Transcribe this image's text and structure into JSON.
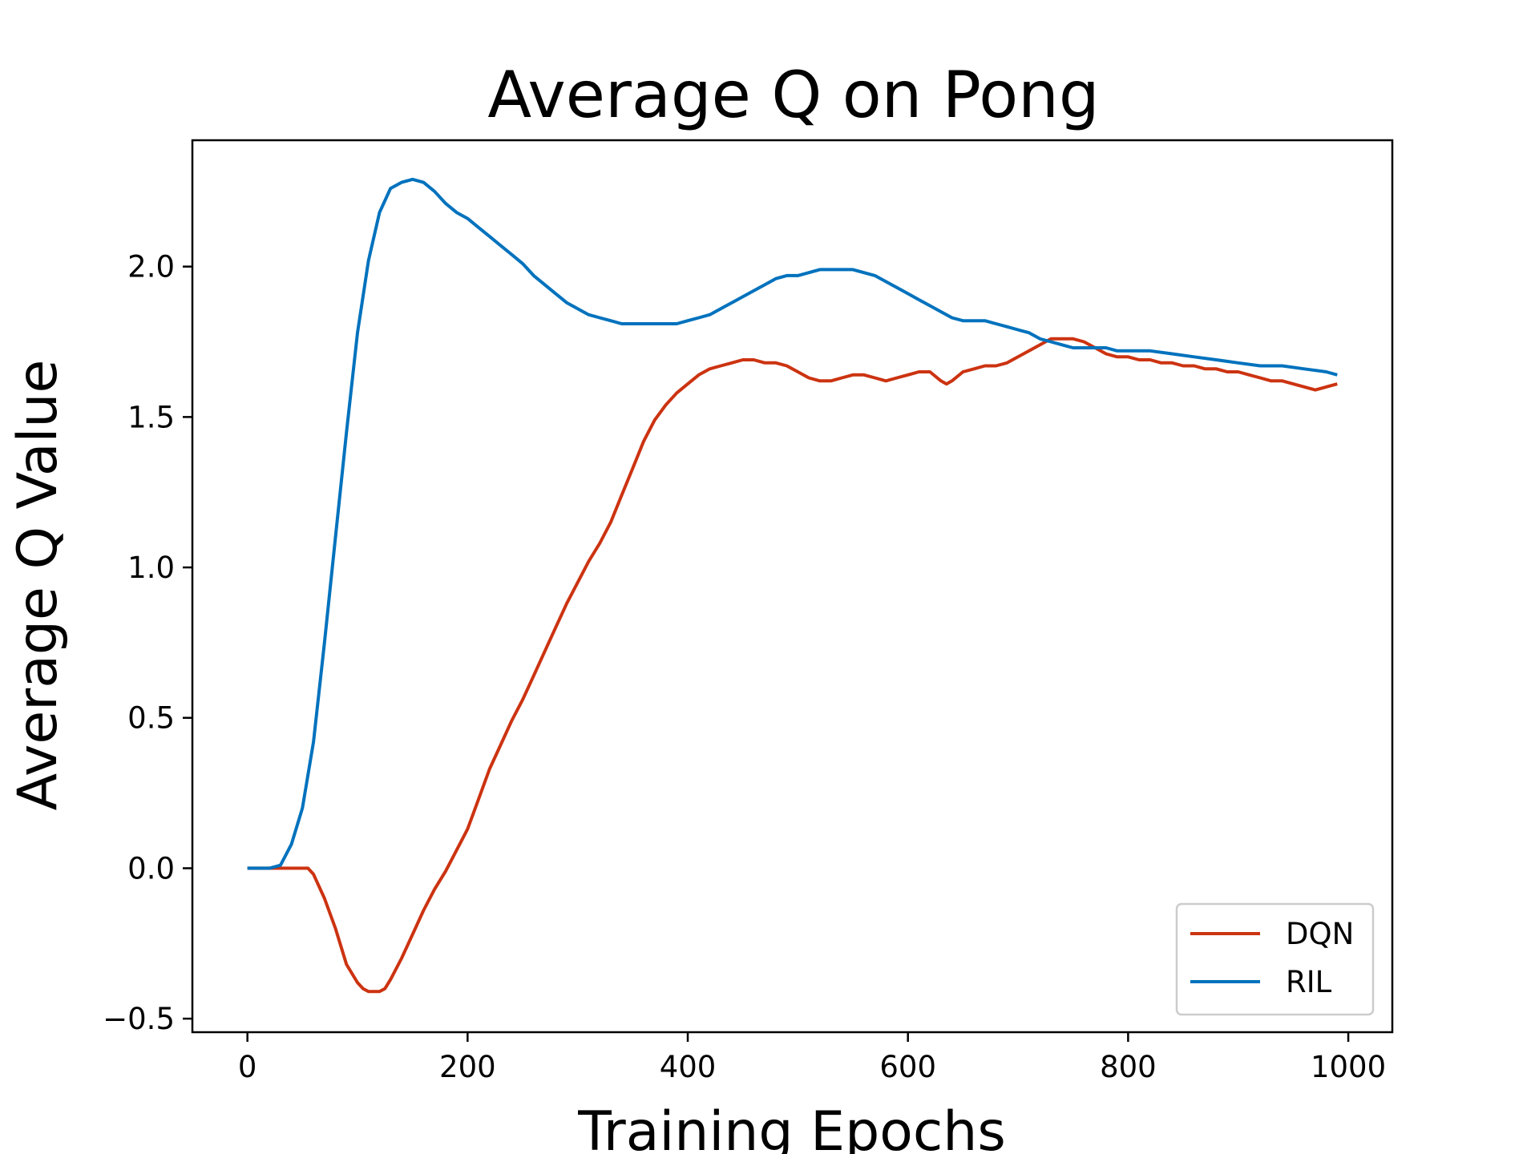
{
  "chart_data": {
    "type": "line",
    "title": "Average Q on Pong",
    "xlabel": "Training Epochs",
    "ylabel": "Average Q Value",
    "xlim": [
      -50,
      1040
    ],
    "ylim": [
      -0.545,
      2.42
    ],
    "xticks": [
      0,
      200,
      400,
      600,
      800,
      1000
    ],
    "xtick_labels": [
      "0",
      "200",
      "400",
      "600",
      "800",
      "1000"
    ],
    "yticks": [
      -0.5,
      0.0,
      0.5,
      1.0,
      1.5,
      2.0
    ],
    "ytick_labels": [
      "−0.5",
      "0.0",
      "0.5",
      "1.0",
      "1.5",
      "2.0"
    ],
    "grid": false,
    "legend_position": "bottom-right",
    "series": [
      {
        "name": "DQN",
        "color": "#cc3311",
        "x": [
          0,
          20,
          40,
          55,
          60,
          70,
          80,
          90,
          100,
          105,
          110,
          115,
          120,
          125,
          130,
          140,
          150,
          160,
          170,
          180,
          190,
          200,
          210,
          220,
          230,
          240,
          250,
          260,
          270,
          280,
          290,
          300,
          310,
          320,
          330,
          340,
          350,
          360,
          370,
          380,
          390,
          400,
          410,
          420,
          430,
          440,
          450,
          460,
          470,
          480,
          490,
          500,
          510,
          520,
          530,
          540,
          550,
          560,
          570,
          580,
          590,
          600,
          610,
          620,
          630,
          635,
          640,
          650,
          660,
          670,
          680,
          690,
          700,
          710,
          720,
          730,
          740,
          750,
          760,
          770,
          780,
          790,
          800,
          810,
          820,
          830,
          840,
          850,
          860,
          870,
          880,
          890,
          900,
          910,
          920,
          930,
          940,
          950,
          960,
          970,
          980,
          990
        ],
        "y": [
          0.0,
          0.0,
          0.0,
          0.0,
          -0.02,
          -0.1,
          -0.2,
          -0.32,
          -0.38,
          -0.4,
          -0.41,
          -0.41,
          -0.41,
          -0.4,
          -0.37,
          -0.3,
          -0.22,
          -0.14,
          -0.07,
          -0.01,
          0.06,
          0.13,
          0.23,
          0.33,
          0.41,
          0.49,
          0.56,
          0.64,
          0.72,
          0.8,
          0.88,
          0.95,
          1.02,
          1.08,
          1.15,
          1.24,
          1.33,
          1.42,
          1.49,
          1.54,
          1.58,
          1.61,
          1.64,
          1.66,
          1.67,
          1.68,
          1.69,
          1.69,
          1.68,
          1.68,
          1.67,
          1.65,
          1.63,
          1.62,
          1.62,
          1.63,
          1.64,
          1.64,
          1.63,
          1.62,
          1.63,
          1.64,
          1.65,
          1.65,
          1.62,
          1.61,
          1.62,
          1.65,
          1.66,
          1.67,
          1.67,
          1.68,
          1.7,
          1.72,
          1.74,
          1.76,
          1.76,
          1.76,
          1.75,
          1.73,
          1.71,
          1.7,
          1.7,
          1.69,
          1.69,
          1.68,
          1.68,
          1.67,
          1.67,
          1.66,
          1.66,
          1.65,
          1.65,
          1.64,
          1.63,
          1.62,
          1.62,
          1.61,
          1.6,
          1.59,
          1.6,
          1.61
        ]
      },
      {
        "name": "RIL",
        "color": "#0072bd",
        "x": [
          0,
          20,
          30,
          40,
          50,
          60,
          70,
          80,
          90,
          100,
          110,
          120,
          130,
          140,
          150,
          160,
          170,
          180,
          190,
          200,
          210,
          220,
          230,
          240,
          250,
          260,
          270,
          280,
          290,
          300,
          310,
          320,
          330,
          340,
          350,
          360,
          370,
          380,
          390,
          400,
          410,
          420,
          430,
          440,
          450,
          460,
          470,
          480,
          490,
          500,
          510,
          520,
          530,
          540,
          550,
          560,
          570,
          580,
          590,
          600,
          610,
          620,
          630,
          640,
          650,
          660,
          670,
          680,
          690,
          700,
          710,
          720,
          730,
          740,
          750,
          760,
          770,
          780,
          790,
          800,
          820,
          840,
          860,
          880,
          900,
          920,
          940,
          960,
          980,
          990
        ],
        "y": [
          0.0,
          0.0,
          0.01,
          0.08,
          0.2,
          0.42,
          0.75,
          1.1,
          1.45,
          1.78,
          2.02,
          2.18,
          2.26,
          2.28,
          2.29,
          2.28,
          2.25,
          2.21,
          2.18,
          2.16,
          2.13,
          2.1,
          2.07,
          2.04,
          2.01,
          1.97,
          1.94,
          1.91,
          1.88,
          1.86,
          1.84,
          1.83,
          1.82,
          1.81,
          1.81,
          1.81,
          1.81,
          1.81,
          1.81,
          1.82,
          1.83,
          1.84,
          1.86,
          1.88,
          1.9,
          1.92,
          1.94,
          1.96,
          1.97,
          1.97,
          1.98,
          1.99,
          1.99,
          1.99,
          1.99,
          1.98,
          1.97,
          1.95,
          1.93,
          1.91,
          1.89,
          1.87,
          1.85,
          1.83,
          1.82,
          1.82,
          1.82,
          1.81,
          1.8,
          1.79,
          1.78,
          1.76,
          1.75,
          1.74,
          1.73,
          1.73,
          1.73,
          1.73,
          1.72,
          1.72,
          1.72,
          1.71,
          1.7,
          1.69,
          1.68,
          1.67,
          1.67,
          1.66,
          1.65,
          1.64
        ]
      }
    ]
  }
}
